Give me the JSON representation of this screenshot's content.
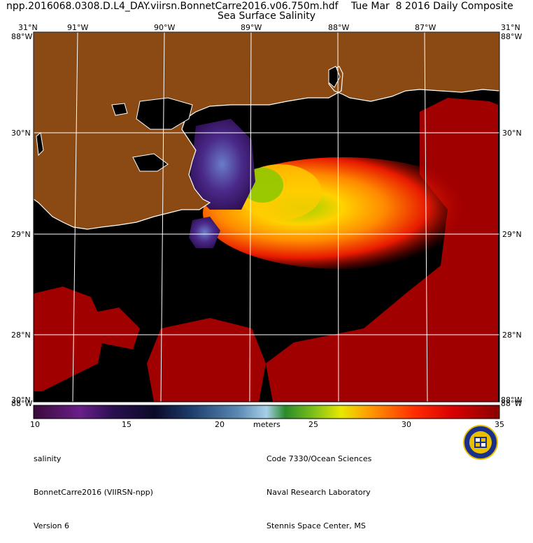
{
  "header": {
    "file_name": "npp.2016068.0308.D.L4_DAY.viirsn.BonnetCarre2016.v06.750m.hdf",
    "date_label": "Tue Mar  8 2016 Daily Composite",
    "product": "Sea Surface Salinity"
  },
  "map": {
    "top_lon_labels": [
      "91°W",
      "90°W",
      "89°W",
      "88°W",
      "87°W"
    ],
    "top_left_lat": "31°N",
    "top_right_lat": "31°N",
    "top_left_edge": "88°W",
    "top_right_edge": "88°W",
    "lat_labels_left": [
      "30°N",
      "29°N",
      "28°N"
    ],
    "lat_labels_right": [
      "30°N",
      "29°N",
      "28°N"
    ],
    "bottom_left_edge": "88°W",
    "bottom_right_edge": "88°W",
    "bottom_left_lat": "30°N",
    "bottom_right_lat": "88°W",
    "colors": {
      "land": "#8b4a14",
      "water": "#000000",
      "grid": "#ffffff",
      "high_salinity": "#a10000"
    }
  },
  "colorbar": {
    "ticks": [
      "10",
      "15",
      "20",
      "25",
      "30",
      "35"
    ],
    "unit": "meters",
    "range": [
      10,
      35
    ]
  },
  "footer": {
    "left": [
      "salinity",
      "BonnetCarre2016 (VIIRSN-npp)",
      "Version 6"
    ],
    "right": [
      "Code 7330/Ocean Sciences",
      "Naval Research Laboratory",
      "Stennis Space Center, MS"
    ]
  },
  "logo": {
    "name": "nrl-seal-icon"
  }
}
